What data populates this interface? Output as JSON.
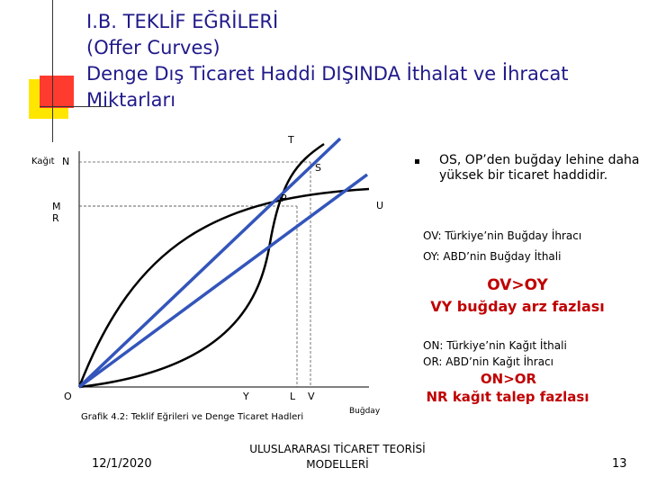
{
  "slide": {
    "title_lines": [
      "I.B. TEKLİF EĞRİLERİ",
      "(Offer Curves)",
      "Denge Dış Ticaret Haddi DIŞINDA İthalat ve İhracat",
      "Miktarları"
    ]
  },
  "diagram": {
    "labels": {
      "t": "T",
      "kagit": "Kağıt",
      "n": "N",
      "s": "S",
      "p": "P",
      "m": "M",
      "r": "R",
      "u": "U",
      "o": "O",
      "y": "Y",
      "l": "L",
      "v": "V",
      "bugday": "Buğday"
    },
    "caption": "Grafik 4.2: Teklif Eğrileri ve Denge Ticaret Hadleri"
  },
  "notes": {
    "bullet": "OS, OP’den buğday lehine daha yüksek bir ticaret haddidir.",
    "ov": "OV: Türkiye’nin Buğday İhracı",
    "oy": "OY: ABD’nin Buğday İthali",
    "ov_gt_oy": "OV>OY",
    "vy_excess": "VY buğday arz fazlası",
    "on": "ON: Türkiye’nin Kağıt İthali",
    "or": "OR: ABD’nin Kağıt İhracı",
    "on_gt_or": "ON>OR",
    "nr_excess": "NR kağıt talep fazlası"
  },
  "footer": {
    "date": "12/1/2020",
    "course_line1": "ULUSLARARASI TİCARET TEORİSİ",
    "course_line2": "MODELLERİ",
    "page": "13"
  },
  "colors": {
    "title": "#201a8a",
    "accent_red": "#c00000",
    "line_blue": "#3355bb"
  }
}
